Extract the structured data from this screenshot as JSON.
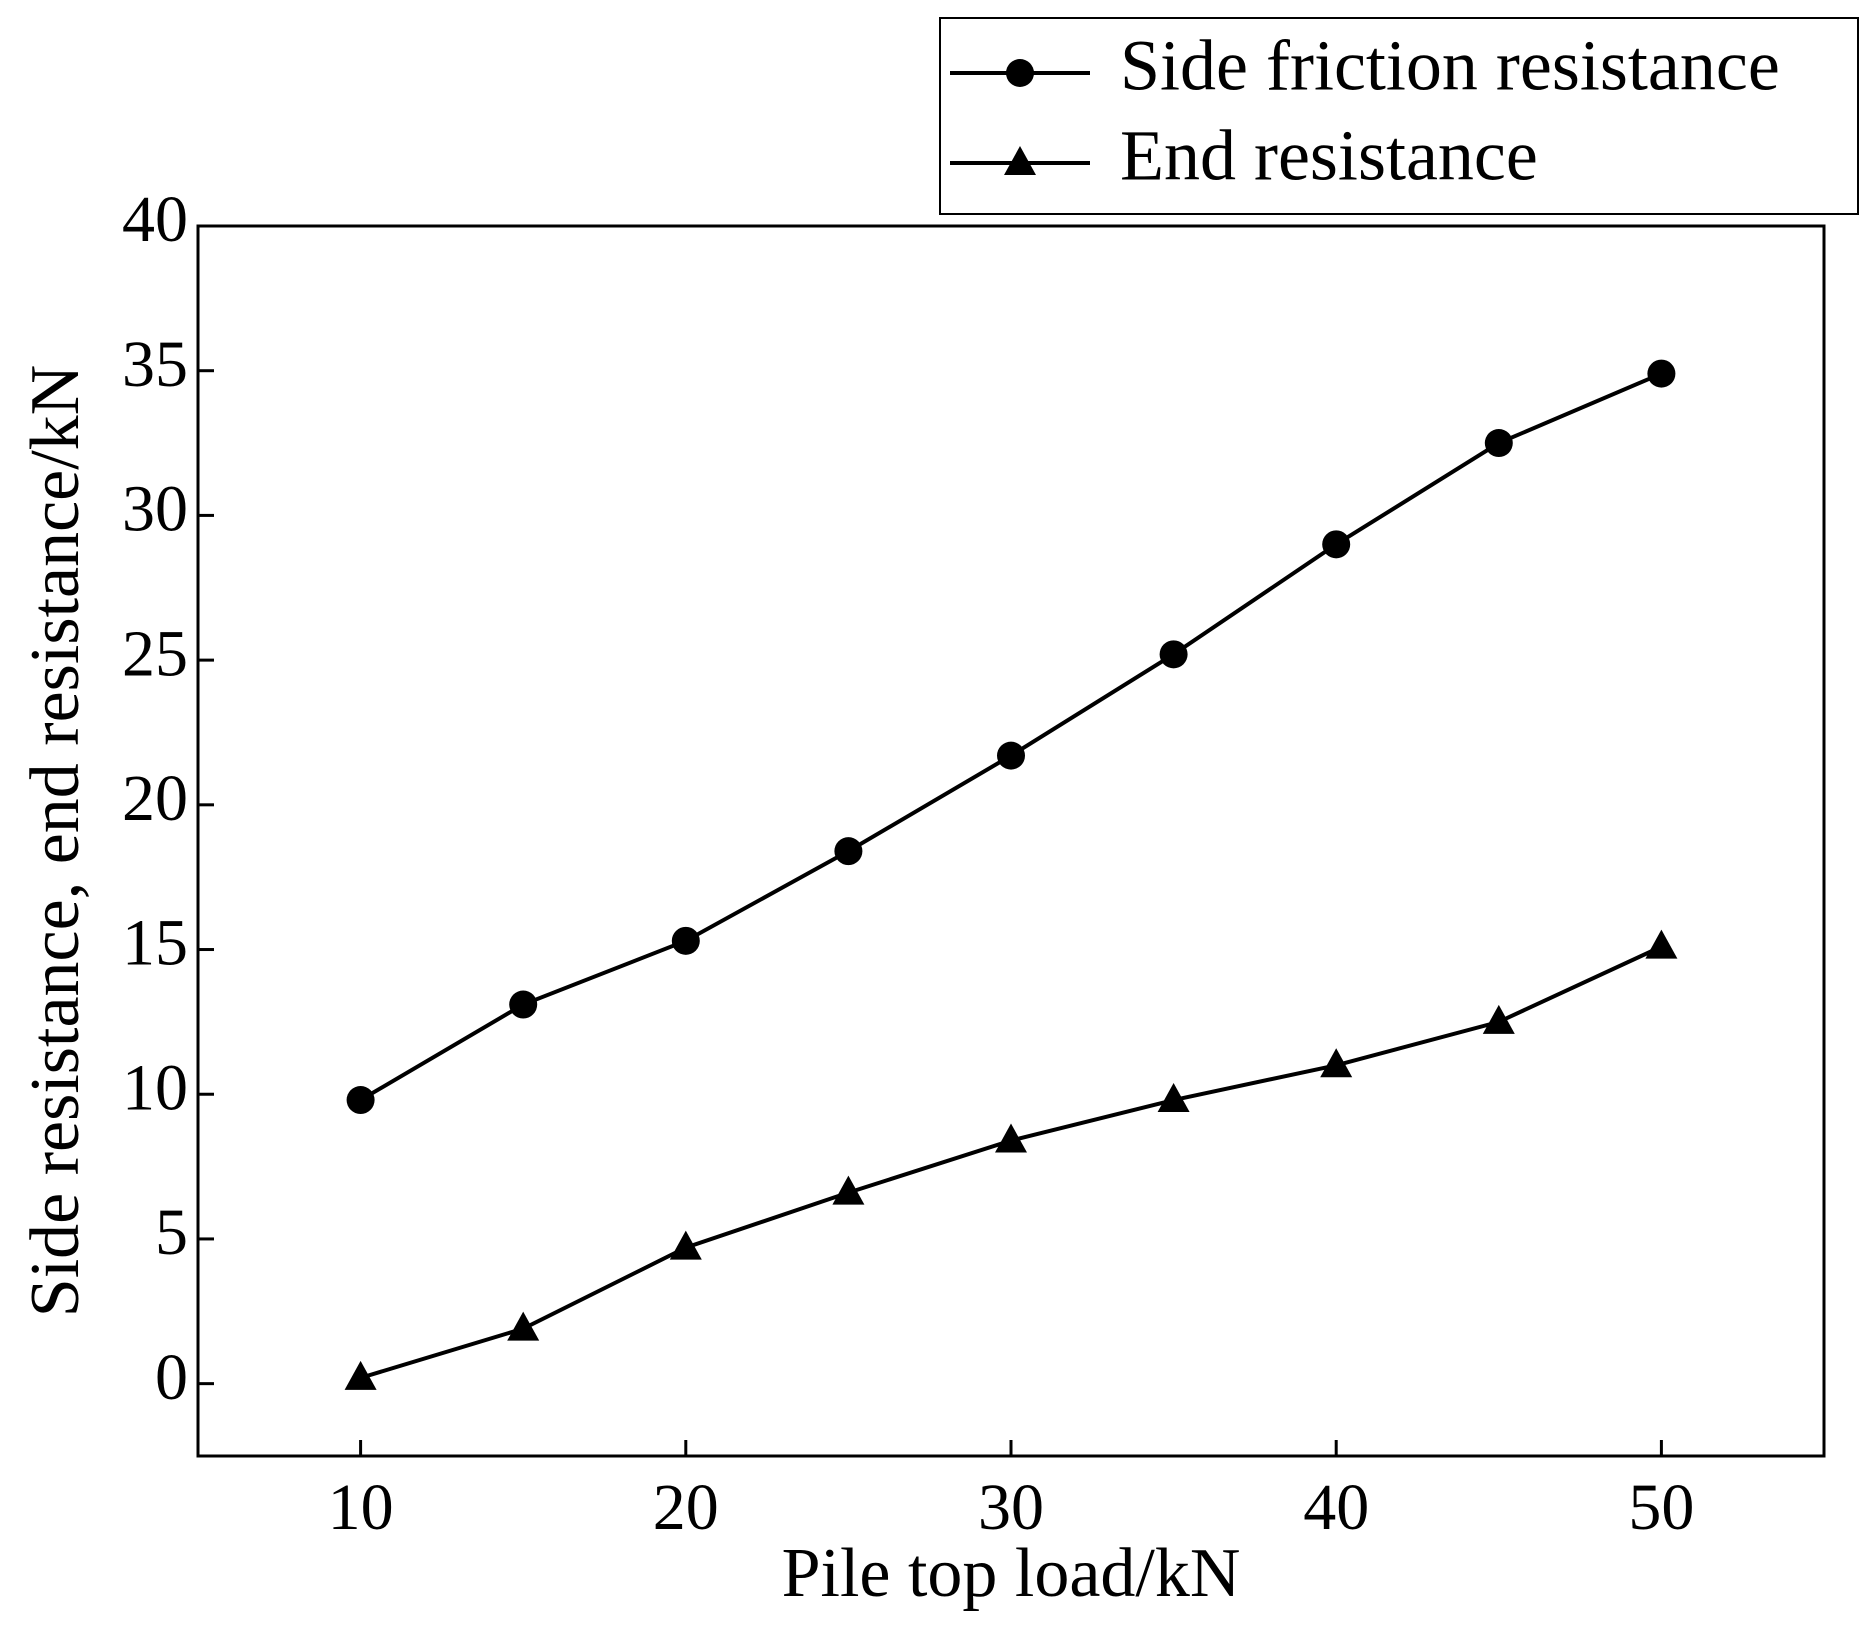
{
  "chart_data": {
    "type": "line",
    "x_label": "Pile top load/kN",
    "y_label": "Side resistance, end resistance/kN",
    "x": [
      10,
      15,
      20,
      25,
      30,
      35,
      40,
      45,
      50
    ],
    "series": [
      {
        "name": "Side friction resistance",
        "color": "#000000",
        "marker": "circle",
        "values": [
          9.8,
          13.1,
          15.3,
          18.4,
          21.7,
          25.2,
          29.0,
          32.5,
          34.9
        ]
      },
      {
        "name": "End resistance",
        "color": "#000000",
        "marker": "triangle",
        "values": [
          0.2,
          1.9,
          4.7,
          6.6,
          8.4,
          9.8,
          11.0,
          12.5,
          15.1
        ]
      }
    ],
    "xlim": [
      5,
      55
    ],
    "xticks": [
      10,
      20,
      30,
      40,
      50
    ],
    "ylim": [
      -2.5,
      40
    ],
    "yticks": [
      0,
      5,
      10,
      15,
      20,
      25,
      30,
      35,
      40
    ],
    "grid": false,
    "legend": "upper right"
  }
}
